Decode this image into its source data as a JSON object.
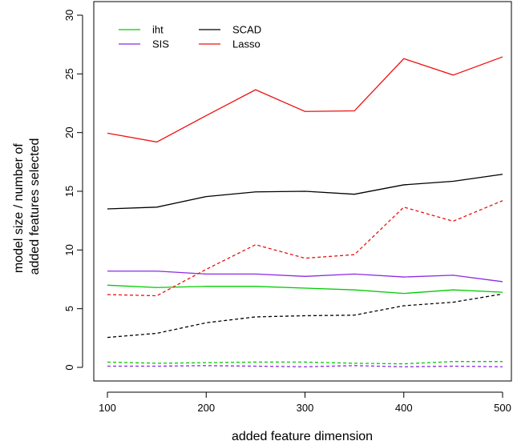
{
  "chart_data": {
    "type": "line",
    "title": "",
    "xlabel": "added feature dimension",
    "ylabel_lines": [
      "model size / number of",
      "added features selected"
    ],
    "xlim": [
      100,
      500
    ],
    "ylim": [
      0,
      30
    ],
    "xticks": [
      100,
      200,
      300,
      400,
      500
    ],
    "yticks": [
      0,
      5,
      10,
      15,
      20,
      25,
      30
    ],
    "grid": false,
    "legend_placement": "top-left",
    "x": [
      100,
      150,
      200,
      250,
      300,
      350,
      400,
      450,
      500
    ],
    "series": [
      {
        "name": "iht",
        "color": "#00cc00",
        "style": "solid",
        "values": [
          7.0,
          6.8,
          6.9,
          6.9,
          6.75,
          6.6,
          6.3,
          6.6,
          6.4
        ]
      },
      {
        "name": "SIS",
        "color": "#8b2be2",
        "style": "solid",
        "values": [
          8.2,
          8.2,
          7.95,
          7.95,
          7.75,
          7.95,
          7.7,
          7.85,
          7.3
        ]
      },
      {
        "name": "SCAD",
        "color": "#000000",
        "style": "solid",
        "values": [
          13.5,
          13.65,
          14.55,
          14.95,
          15.0,
          14.75,
          15.55,
          15.85,
          16.45
        ]
      },
      {
        "name": "Lasso",
        "color": "#ee1111",
        "style": "solid",
        "values": [
          19.95,
          19.2,
          21.45,
          23.65,
          21.8,
          21.85,
          26.3,
          24.9,
          26.45
        ]
      },
      {
        "color": "#00cc00",
        "style": "dashed",
        "values": [
          0.45,
          0.35,
          0.4,
          0.45,
          0.45,
          0.35,
          0.3,
          0.5,
          0.5
        ]
      },
      {
        "color": "#8b2be2",
        "style": "dashed",
        "values": [
          0.1,
          0.1,
          0.15,
          0.1,
          0.05,
          0.15,
          0.05,
          0.1,
          0.05
        ]
      },
      {
        "color": "#000000",
        "style": "dashed",
        "values": [
          2.55,
          2.9,
          3.8,
          4.3,
          4.4,
          4.45,
          5.25,
          5.55,
          6.25
        ]
      },
      {
        "color": "#ee1111",
        "style": "dashed",
        "values": [
          6.2,
          6.1,
          8.35,
          10.45,
          9.3,
          9.6,
          13.65,
          12.45,
          14.2
        ]
      }
    ],
    "legend": [
      {
        "label": "iht",
        "color": "#00cc00"
      },
      {
        "label": "SIS",
        "color": "#8b2be2"
      },
      {
        "label": "SCAD",
        "color": "#000000"
      },
      {
        "label": "Lasso",
        "color": "#ee1111"
      }
    ]
  }
}
